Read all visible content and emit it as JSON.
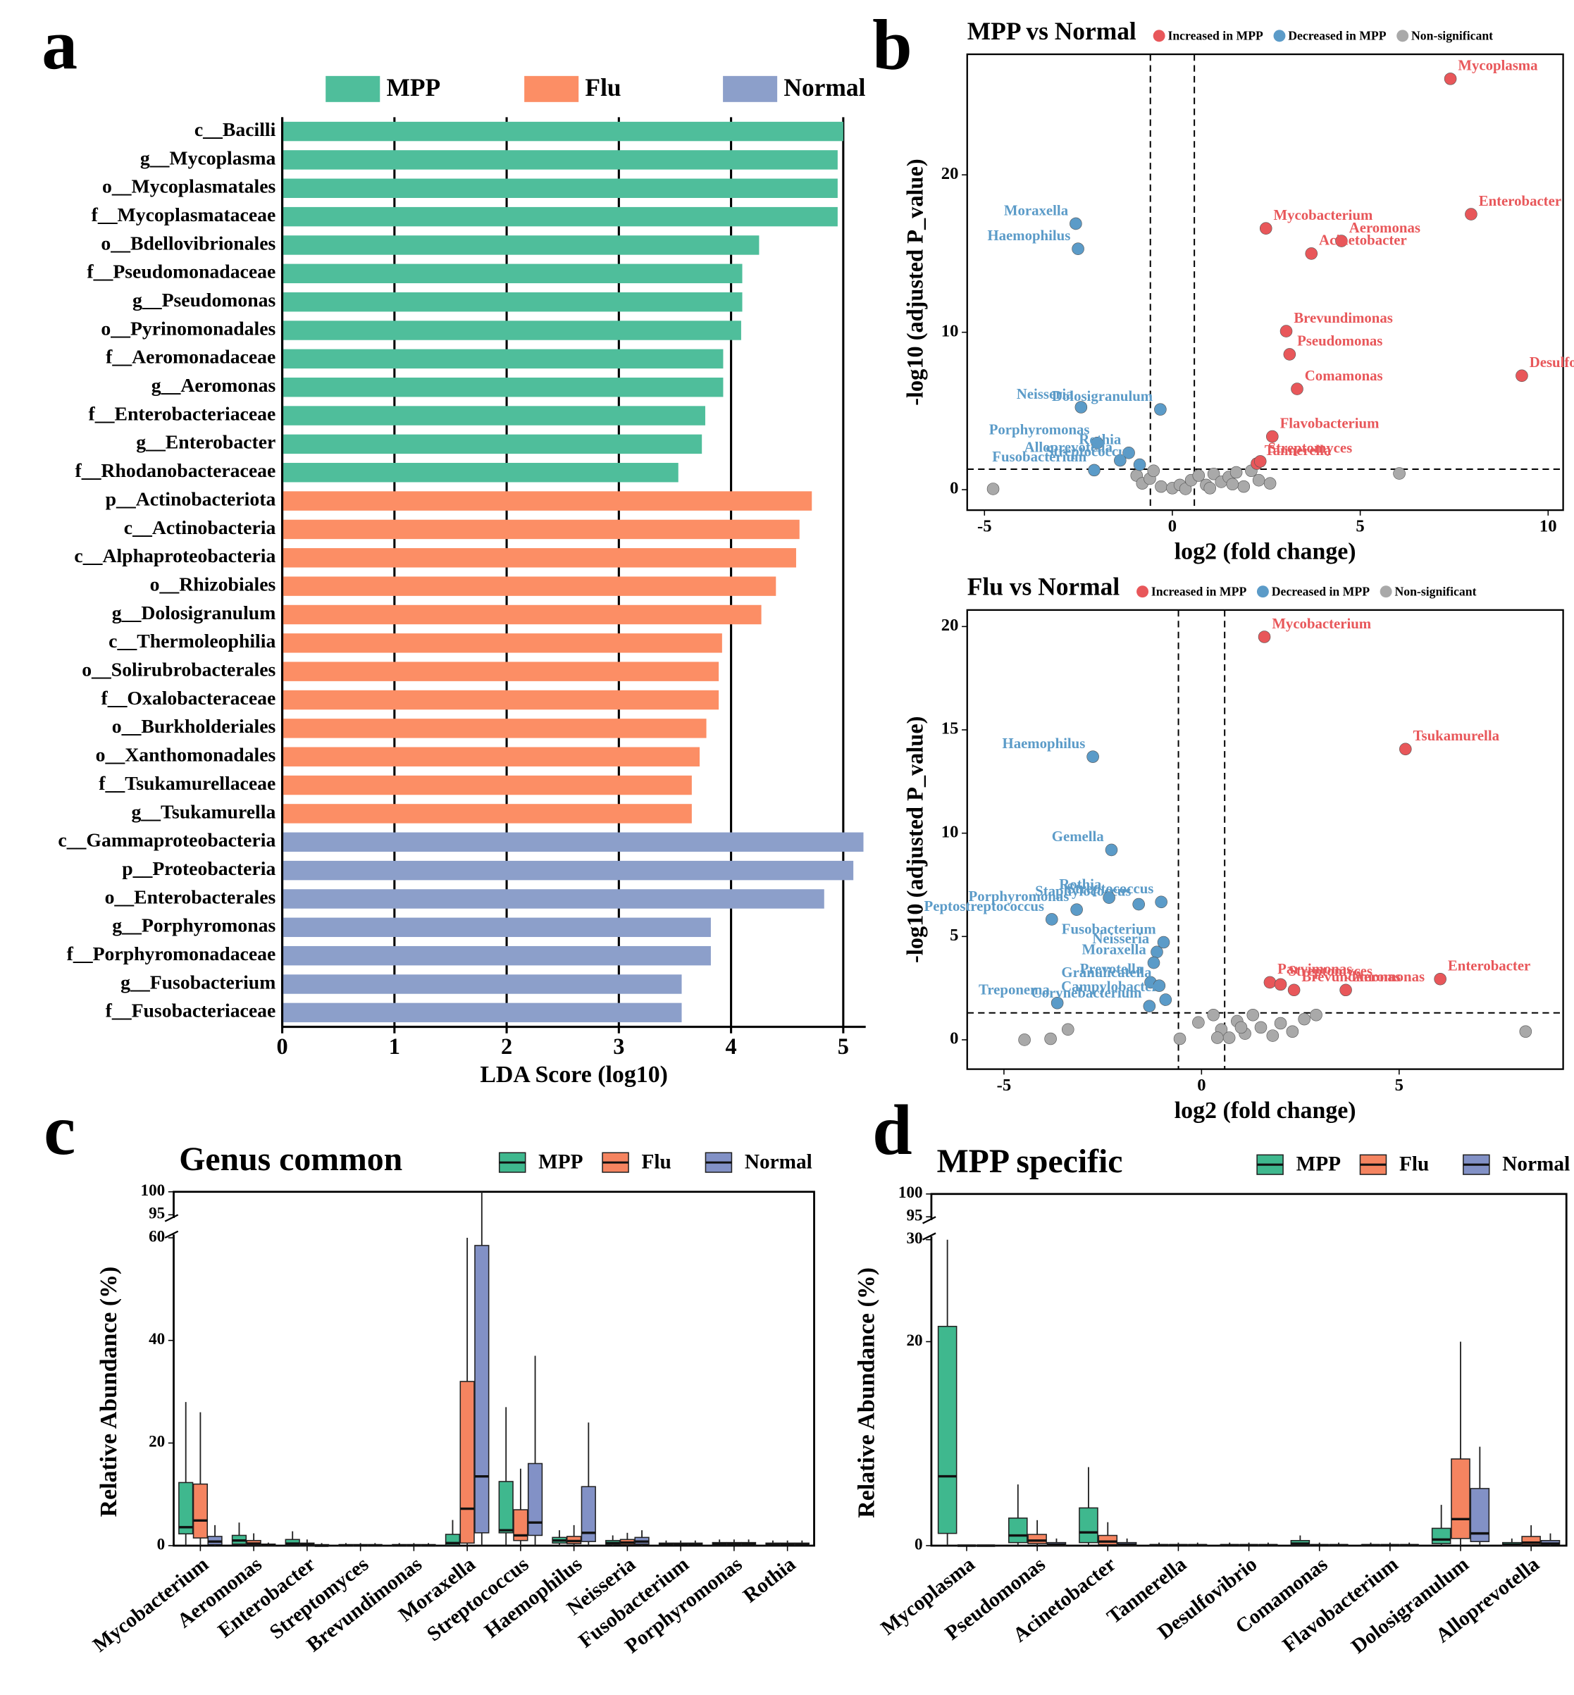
{
  "panel_labels": [
    "a",
    "b",
    "c",
    "d"
  ],
  "chart_data": [
    {
      "type": "bar",
      "orientation": "horizontal",
      "xlabel": "LDA Score (log10)",
      "xlim": [
        0,
        5.2
      ],
      "xticks": [
        0,
        1,
        2,
        3,
        4,
        5
      ],
      "grid": true,
      "legend": "top",
      "series": [
        {
          "name": "MPP",
          "color": "#4fbe9b",
          "categories": [
            "c__Bacilli",
            "g__Mycoplasma",
            "o__Mycoplasmatales",
            "f__Mycoplasmataceae",
            "o__Bdellovibrionales",
            "f__Pseudomonadaceae",
            "g__Pseudomonas",
            "o__Pyrinomonadales",
            "f__Aeromonadaceae",
            "g__Aeromonas",
            "f__Enterobacteriaceae",
            "g__Enterobacter",
            "f__Rhodanobacteraceae"
          ],
          "values": [
            5.0,
            4.95,
            4.95,
            4.95,
            4.25,
            4.1,
            4.1,
            4.09,
            3.93,
            3.93,
            3.77,
            3.74,
            3.53
          ]
        },
        {
          "name": "Flu",
          "color": "#fc8e65",
          "categories": [
            "p__Actinobacteriota",
            "c__Actinobacteria",
            "c__Alphaproteobacteria",
            "o__Rhizobiales",
            "g__Dolosigranulum",
            "c__Thermoleophilia",
            "o__Solirubrobacterales",
            "f__Oxalobacteraceae",
            "o__Burkholderiales",
            "o__Xanthomonadales",
            "f__Tsukamurellaceae",
            "g__Tsukamurella"
          ],
          "values": [
            4.72,
            4.61,
            4.58,
            4.4,
            4.27,
            3.92,
            3.89,
            3.89,
            3.78,
            3.72,
            3.65,
            3.65
          ]
        },
        {
          "name": "Normal",
          "color": "#8c9fca",
          "categories": [
            "c__Gammaproteobacteria",
            "p__Proteobacteria",
            "o__Enterobacterales",
            "g__Porphyromonas",
            "f__Porphyromonadaceae",
            "g__Fusobacterium",
            "f__Fusobacteriaceae"
          ],
          "values": [
            5.18,
            5.09,
            4.83,
            3.82,
            3.82,
            3.56,
            3.56
          ]
        }
      ]
    },
    {
      "type": "scatter",
      "title": "MPP vs Normal",
      "xlabel": "log2 (fold change)",
      "ylabel": "-log10 (adjusted P_value)",
      "xlim": [
        -5.46,
        10.4
      ],
      "ylim": [
        -1.3,
        27.66
      ],
      "xticks": [
        -5,
        0,
        5,
        10
      ],
      "yticks": [
        0,
        10,
        20
      ],
      "thresholds_x": [
        -0.585,
        0.585
      ],
      "threshold_y": 1.301,
      "legend": "top",
      "series": [
        {
          "name": "Increased in MPP",
          "color": "#e8575a",
          "x": [
            7.4,
            7.95,
            2.49,
            4.5,
            3.7,
            3.03,
            3.12,
            9.3,
            3.32,
            2.66,
            2.25,
            2.34
          ],
          "y": [
            26.1,
            17.5,
            16.6,
            15.8,
            15.0,
            10.07,
            8.6,
            7.24,
            6.4,
            3.38,
            1.66,
            1.8
          ],
          "labels": [
            "Mycoplasma",
            "Enterobacter",
            "Mycobacterium",
            "Aeromonas",
            "Acinetobacter",
            "Brevundimonas",
            "Pseudomonas",
            "Desulfovibrio",
            "Comamonas",
            "Flavobacterium",
            "Tannerella",
            "Streptomyces"
          ]
        },
        {
          "name": "Decreased in MPP",
          "color": "#5b9bc8",
          "x": [
            -2.57,
            -2.51,
            -2.43,
            -0.32,
            -2.0,
            -1.16,
            -1.39,
            -2.08,
            -0.87
          ],
          "y": [
            16.9,
            15.3,
            5.24,
            5.1,
            2.97,
            2.34,
            1.86,
            1.24,
            1.59
          ],
          "labels": [
            "Moraxella",
            "Haemophilus",
            "Neisseria",
            "Dolosigranulum",
            "Porphyromonas",
            "Rothia",
            "Alloprevotella",
            "Fusobacterium",
            "Streptococcus"
          ]
        },
        {
          "name": "Non-significant",
          "color": "#a9a9a9",
          "x": [
            -4.77,
            6.04,
            -0.95,
            -0.8,
            -0.6,
            -0.3,
            0,
            0.2,
            0.35,
            0.5,
            0.7,
            0.9,
            1.1,
            1.3,
            1.5,
            1.7,
            1.9,
            2.1,
            2.3,
            2.6,
            -0.5,
            1.0,
            1.6
          ],
          "y": [
            0.05,
            1.03,
            0.9,
            0.4,
            0.7,
            0.2,
            0.1,
            0.3,
            0.05,
            0.6,
            0.9,
            0.3,
            1.0,
            0.5,
            0.8,
            1.1,
            0.2,
            1.2,
            0.6,
            0.4,
            1.2,
            0.1,
            0.35
          ]
        }
      ]
    },
    {
      "type": "scatter",
      "title": "Flu vs Normal",
      "xlabel": "log2 (fold change)",
      "ylabel": "-log10 (adjusted P_value)",
      "xlim": [
        -5.93,
        9.15
      ],
      "ylim": [
        -1.42,
        20.8
      ],
      "xticks": [
        -5,
        0,
        5
      ],
      "yticks": [
        0,
        5,
        10,
        15,
        20
      ],
      "thresholds_x": [
        -0.585,
        0.585
      ],
      "threshold_y": 1.301,
      "legend": "top",
      "series": [
        {
          "name": "Increased in MPP",
          "color": "#e8575a",
          "x": [
            1.59,
            5.16,
            6.04,
            3.65,
            1.73,
            2.0,
            2.34
          ],
          "y": [
            19.5,
            14.07,
            2.94,
            2.41,
            2.78,
            2.68,
            2.41
          ],
          "labels": [
            "Mycobacterium",
            "Tsukamurella",
            "Enterobacter",
            "Aeromonas",
            "Parvimonas",
            "Streptomyces",
            "Brevundimonas"
          ]
        },
        {
          "name": "Decreased in MPP",
          "color": "#5b9bc8",
          "x": [
            -2.75,
            -2.28,
            -1.59,
            -2.34,
            -3.16,
            -1.02,
            -3.79,
            -1.13,
            -0.96,
            -1.21,
            -1.29,
            -3.65,
            -1.07,
            -1.32,
            -0.91
          ],
          "y": [
            13.7,
            9.19,
            6.56,
            6.88,
            6.3,
            6.67,
            5.83,
            4.25,
            4.72,
            3.73,
            2.78,
            1.78,
            2.62,
            1.63,
            1.94
          ],
          "labels": [
            "Haemophilus",
            "Gemella",
            "Staphylococcus",
            "Rothia",
            "Porphyromonas",
            "Streptococcus",
            "Peptostreptococcus",
            "Neisseria",
            "Fusobacterium",
            "Moraxella",
            "Prevotella",
            "Treponema",
            "Granulicatella",
            "Corynebacterium",
            "Campylobacter"
          ]
        },
        {
          "name": "Non-significant",
          "color": "#a9a9a9",
          "x": [
            -4.48,
            -3.82,
            -3.38,
            -0.55,
            -0.08,
            8.2,
            0.3,
            0.5,
            0.7,
            0.9,
            1.1,
            1.3,
            1.5,
            1.8,
            2.0,
            2.3,
            2.6,
            2.9,
            0.4,
            1.0
          ],
          "y": [
            0,
            0.05,
            0.5,
            0.05,
            0.84,
            0.4,
            1.2,
            0.5,
            0.1,
            0.9,
            0.3,
            1.2,
            0.6,
            0.2,
            0.8,
            0.4,
            1.0,
            1.2,
            0.1,
            0.6
          ]
        }
      ]
    },
    {
      "type": "box",
      "title": "Genus common",
      "ylabel": "Relative Abundance (%)",
      "ylim": [
        0,
        100
      ],
      "ybreak": [
        60,
        95
      ],
      "yticks": [
        0,
        20,
        40,
        60,
        95,
        100
      ],
      "legend": "top-right",
      "categories": [
        "Mycobacterium",
        "Aeromonas",
        "Enterobacter",
        "Streptomyces",
        "Brevundimonas",
        "Moraxella",
        "Streptococcus",
        "Haemophilus",
        "Neisseria",
        "Fusobacterium",
        "Porphyromonas",
        "Rothia"
      ],
      "series": [
        {
          "name": "MPP",
          "color": "#3fb88e",
          "min": [
            0,
            0,
            0,
            0,
            0,
            0,
            0,
            0,
            0,
            0,
            0,
            0
          ],
          "q1": [
            2.3,
            0.3,
            0.1,
            0,
            0,
            0.1,
            2.5,
            0.5,
            0.2,
            0.1,
            0.1,
            0.1
          ],
          "median": [
            3.6,
            1,
            0.4,
            0.05,
            0.05,
            0.5,
            3,
            1,
            0.5,
            0.2,
            0.3,
            0.2
          ],
          "q3": [
            12.3,
            2,
            1.2,
            0.2,
            0.2,
            2.2,
            12.5,
            1.6,
            1,
            0.5,
            0.6,
            0.5
          ],
          "max": [
            28,
            4.5,
            2.8,
            0.5,
            0.5,
            5,
            27,
            3,
            2,
            1,
            1.2,
            1
          ]
        },
        {
          "name": "Flu",
          "color": "#f58460",
          "min": [
            0,
            0,
            0,
            0,
            0,
            0,
            0,
            0,
            0,
            0,
            0,
            0
          ],
          "q1": [
            1.5,
            0.1,
            0,
            0,
            0,
            0.5,
            1,
            0.4,
            0.2,
            0.1,
            0.1,
            0.1
          ],
          "median": [
            4.9,
            0.4,
            0.2,
            0.05,
            0.05,
            7.2,
            2,
            0.9,
            0.6,
            0.2,
            0.3,
            0.2
          ],
          "q3": [
            12,
            1,
            0.5,
            0.2,
            0.2,
            32,
            7,
            1.8,
            1.2,
            0.5,
            0.6,
            0.5
          ],
          "max": [
            26,
            2.4,
            1.2,
            0.5,
            0.5,
            60,
            15,
            4,
            2.5,
            1,
            1.2,
            1
          ]
        },
        {
          "name": "Normal",
          "color": "#8291c6",
          "min": [
            0,
            0,
            0,
            0,
            0,
            0,
            0,
            0,
            0,
            0,
            0,
            0
          ],
          "q1": [
            0.2,
            0,
            0,
            0,
            0,
            2.5,
            2,
            0.8,
            0.3,
            0.1,
            0.1,
            0.1
          ],
          "median": [
            0.8,
            0.1,
            0,
            0.05,
            0.05,
            13.5,
            4.5,
            2.5,
            0.8,
            0.2,
            0.3,
            0.2
          ],
          "q3": [
            1.8,
            0.3,
            0.2,
            0.2,
            0.2,
            58.5,
            16,
            11.5,
            1.6,
            0.5,
            0.6,
            0.5
          ],
          "max": [
            4,
            0.6,
            0.5,
            0.5,
            0.5,
            100,
            37,
            24,
            3,
            1,
            1.2,
            1
          ]
        }
      ]
    },
    {
      "type": "box",
      "title": "MPP specific",
      "ylabel": "Relative Abundance (%)",
      "ylim": [
        0,
        100
      ],
      "ybreak": [
        30,
        95
      ],
      "yticks": [
        0,
        20,
        30,
        95,
        100
      ],
      "legend": "top-right",
      "categories": [
        "Mycoplasma",
        "Pseudomonas",
        "Acinetobacter",
        "Tannerella",
        "Desulfovibrio",
        "Comamonas",
        "Flavobacterium",
        "Dolosigranulum",
        "Alloprevotella"
      ],
      "series": [
        {
          "name": "MPP",
          "color": "#3fb88e",
          "min": [
            0,
            0,
            0,
            0,
            0,
            0,
            0,
            0,
            0
          ],
          "q1": [
            1.2,
            0.3,
            0.3,
            0,
            0,
            0.05,
            0,
            0.2,
            0
          ],
          "median": [
            6.8,
            1,
            1.3,
            0.05,
            0.05,
            0.2,
            0.05,
            0.6,
            0.1
          ],
          "q3": [
            21.5,
            2.7,
            3.7,
            0.1,
            0.1,
            0.5,
            0.1,
            1.7,
            0.3
          ],
          "max": [
            30,
            6,
            7.7,
            0.3,
            0.3,
            1,
            0.3,
            4,
            0.7
          ]
        },
        {
          "name": "Flu",
          "color": "#f58460",
          "min": [
            0,
            0,
            0,
            0,
            0,
            0,
            0,
            0,
            0
          ],
          "q1": [
            0,
            0.2,
            0.1,
            0,
            0,
            0,
            0,
            0.7,
            0.1
          ],
          "median": [
            0,
            0.5,
            0.4,
            0.05,
            0.05,
            0.05,
            0.05,
            2.6,
            0.3
          ],
          "q3": [
            0.05,
            1.1,
            1,
            0.1,
            0.1,
            0.1,
            0.1,
            8.5,
            0.9
          ],
          "max": [
            0.1,
            2.5,
            2.3,
            0.3,
            0.3,
            0.3,
            0.3,
            20,
            2
          ]
        },
        {
          "name": "Normal",
          "color": "#8291c6",
          "min": [
            0,
            0,
            0,
            0,
            0,
            0,
            0,
            0,
            0
          ],
          "q1": [
            0,
            0,
            0,
            0,
            0,
            0,
            0,
            0.4,
            0.1
          ],
          "median": [
            0,
            0.1,
            0.1,
            0.05,
            0.05,
            0.05,
            0.05,
            1.2,
            0.2
          ],
          "q3": [
            0,
            0.3,
            0.3,
            0.1,
            0.1,
            0.1,
            0.1,
            5.6,
            0.5
          ],
          "max": [
            0.1,
            0.7,
            0.7,
            0.3,
            0.3,
            0.3,
            0.3,
            9.7,
            1.2
          ]
        }
      ]
    }
  ]
}
